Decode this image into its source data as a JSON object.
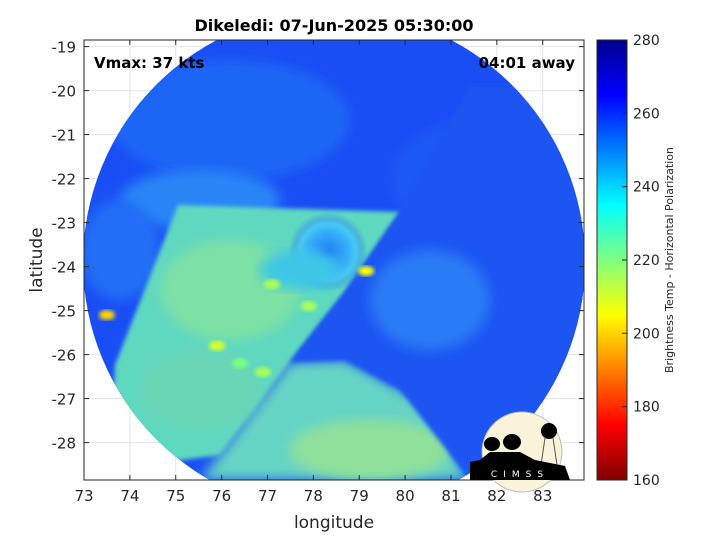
{
  "chart_data": {
    "type": "heatmap",
    "title": "Dikeledi: 07-Jun-2025 05:30:00",
    "xlabel": "longitude",
    "ylabel": "latitude",
    "xlim": [
      73,
      83.9
    ],
    "ylim": [
      -28.85,
      -18.85
    ],
    "xticks": [
      "73",
      "74",
      "75",
      "76",
      "77",
      "78",
      "79",
      "80",
      "81",
      "82",
      "83"
    ],
    "yticks": [
      "-19",
      "-20",
      "-21",
      "-22",
      "-23",
      "-24",
      "-25",
      "-26",
      "-27",
      "-28"
    ],
    "grid": true,
    "annotations": {
      "vmax": "Vmax: 37 kts",
      "away": "04:01 away"
    },
    "colorbar": {
      "label": "Brightness Temp - Horizontal Polarization",
      "range": [
        160,
        280
      ],
      "ticks": [
        "280",
        "260",
        "240",
        "220",
        "200",
        "180",
        "160"
      ],
      "colormap": "jet"
    },
    "features": [
      {
        "name": "warm spot",
        "lon": 73.5,
        "lat": -25.1,
        "value": 200
      },
      {
        "name": "warm spot",
        "lon": 79.15,
        "lat": -24.1,
        "value": 205
      },
      {
        "name": "warm spot",
        "lon": 75.9,
        "lat": -25.8,
        "value": 210
      },
      {
        "name": "warm spot",
        "lon": 77.1,
        "lat": -24.4,
        "value": 215
      },
      {
        "name": "warm spot",
        "lon": 77.9,
        "lat": -24.9,
        "value": 215
      },
      {
        "name": "warm spot",
        "lon": 76.9,
        "lat": -26.4,
        "value": 215
      },
      {
        "name": "warm spot",
        "lon": 76.4,
        "lat": -26.2,
        "value": 220
      }
    ]
  },
  "logo": {
    "text": "CIMSS"
  }
}
